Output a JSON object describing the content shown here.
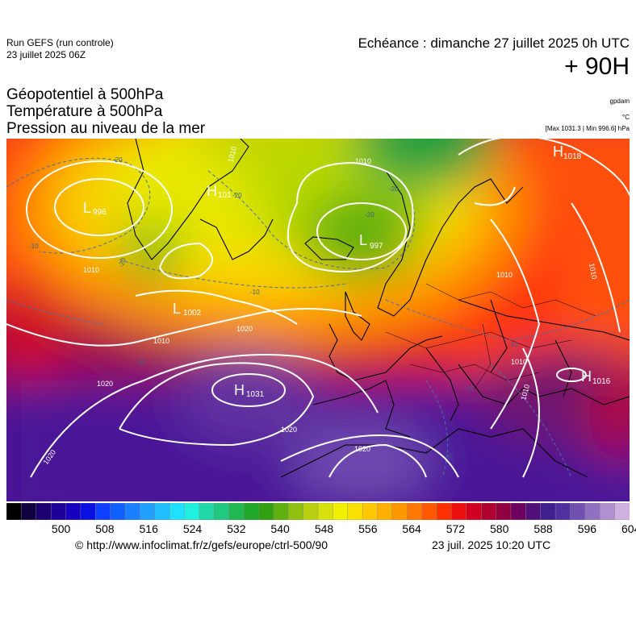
{
  "header": {
    "run_line1": "Run GEFS (run controle)",
    "run_line2": "23 juillet 2025 06Z",
    "echeance": "Echéance : dimanche 27 juillet 2025 0h UTC",
    "lead": "+ 90H"
  },
  "parameters": {
    "line1": "Géopotentiel à 500hPa",
    "line2": "Température à 500hPa",
    "line3": "Pression au niveau de la mer"
  },
  "units": {
    "geopotential": "gpdam",
    "temperature": "°C",
    "pressure_range": "[Max 1031.3 | Min 996.6] hPa"
  },
  "pressure_centers": [
    {
      "type": "L",
      "value": "996"
    },
    {
      "type": "H",
      "value": "101"
    },
    {
      "type": "L",
      "value": "997"
    },
    {
      "type": "H",
      "value": "1018"
    },
    {
      "type": "L",
      "value": "1002"
    },
    {
      "type": "H",
      "value": "1031"
    },
    {
      "type": "H",
      "value": "1016"
    }
  ],
  "isobar_labels": [
    "1010",
    "1010",
    "1010",
    "1010",
    "1010",
    "1010",
    "1010",
    "1010",
    "1020",
    "1020",
    "1020",
    "1020",
    "1020"
  ],
  "temperature_labels": [
    "-20",
    "-20",
    "-20",
    "-20",
    "-20",
    "-10",
    "-10",
    "-10",
    "-10",
    "-10",
    "-10"
  ],
  "colorbar": {
    "colors": [
      "#000000",
      "#100040",
      "#1a0070",
      "#20009a",
      "#1800c0",
      "#0a10e0",
      "#1040ff",
      "#1060ff",
      "#1a80ff",
      "#20a0ff",
      "#20c0ff",
      "#20e0ff",
      "#20f0e0",
      "#20d8a8",
      "#20c880",
      "#20b850",
      "#20a828",
      "#30a010",
      "#60b010",
      "#90c010",
      "#b8d010",
      "#d8e010",
      "#f0f000",
      "#f8e000",
      "#ffc800",
      "#ffb000",
      "#ff9800",
      "#ff7800",
      "#ff5800",
      "#ff3000",
      "#ee1010",
      "#d00020",
      "#b00030",
      "#900040",
      "#700060",
      "#501078",
      "#402090",
      "#5030a0",
      "#7050b0",
      "#9070c0",
      "#b090d0",
      "#d0b0e0"
    ],
    "tick_labels": [
      "500",
      "508",
      "516",
      "524",
      "532",
      "540",
      "548",
      "556",
      "564",
      "572",
      "580",
      "588",
      "596",
      "604"
    ]
  },
  "footer": {
    "credit": "© http://www.infoclimat.fr/z/gefs/europe/ctrl-500/90",
    "generated": "23 juil. 2025 10:20 UTC"
  }
}
